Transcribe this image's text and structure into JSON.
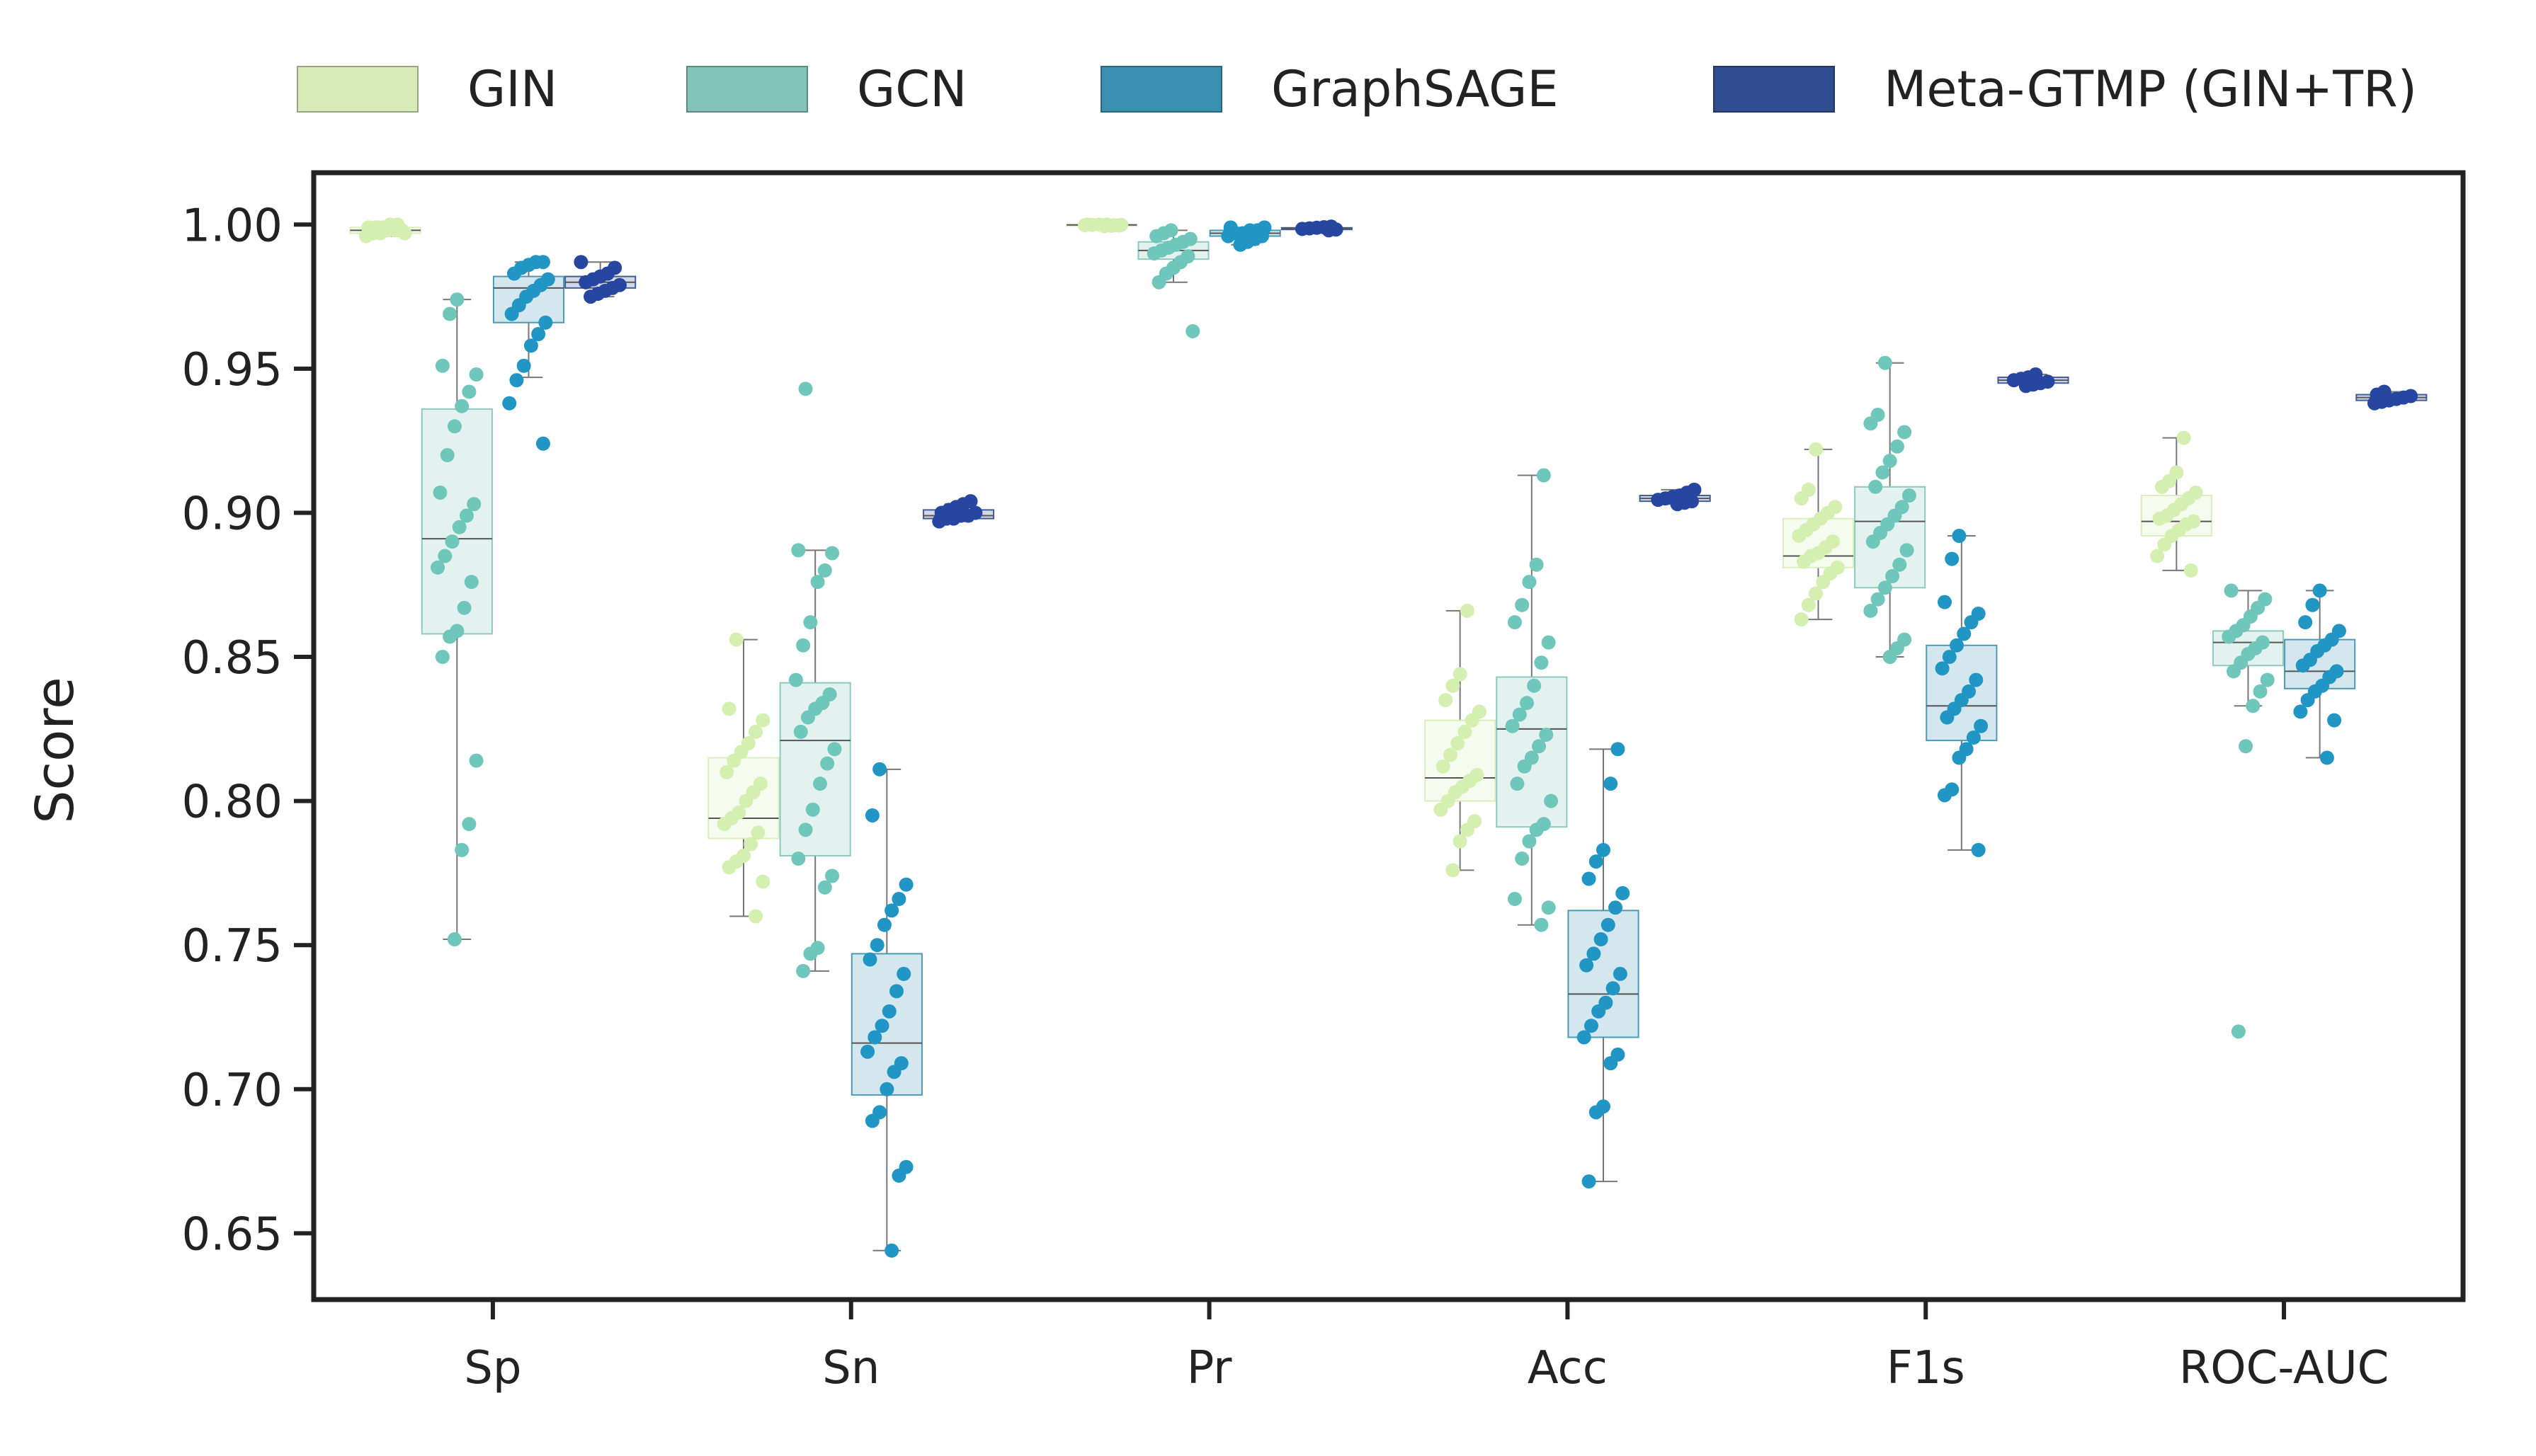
{
  "chart_data": {
    "type": "box",
    "title": "",
    "xlabel": "",
    "ylabel": "Score",
    "ylim": [
      0.627,
      1.018
    ],
    "yticks": [
      "0.65",
      "0.70",
      "0.75",
      "0.80",
      "0.85",
      "0.90",
      "0.95",
      "1.00"
    ],
    "grid": false,
    "legend_position": "top",
    "categories": [
      "Sp",
      "Sn",
      "Pr",
      "Acc",
      "F1s",
      "ROC-AUC"
    ],
    "series": [
      {
        "name": "GIN",
        "color": "#d7ecb8",
        "boxes": [
          {
            "whislo": 0.996,
            "q1": 0.997,
            "med": 0.998,
            "q3": 0.999,
            "whishi": 1.0
          },
          {
            "whislo": 0.76,
            "q1": 0.787,
            "med": 0.794,
            "q3": 0.815,
            "whishi": 0.856
          },
          {
            "whislo": 0.9995,
            "q1": 0.9997,
            "med": 0.9999,
            "q3": 1.0,
            "whishi": 1.0
          },
          {
            "whislo": 0.776,
            "q1": 0.8,
            "med": 0.808,
            "q3": 0.828,
            "whishi": 0.866
          },
          {
            "whislo": 0.863,
            "q1": 0.881,
            "med": 0.885,
            "q3": 0.898,
            "whishi": 0.922
          },
          {
            "whislo": 0.88,
            "q1": 0.892,
            "med": 0.897,
            "q3": 0.906,
            "whishi": 0.926
          }
        ],
        "points": [
          [
            0.996,
            0.997,
            0.997,
            0.998,
            0.998,
            0.998,
            0.999,
            0.999,
            0.999,
            1.0,
            1.0,
            0.997,
            0.998,
            0.999
          ],
          [
            0.76,
            0.772,
            0.777,
            0.779,
            0.781,
            0.785,
            0.789,
            0.792,
            0.794,
            0.796,
            0.8,
            0.803,
            0.806,
            0.81,
            0.814,
            0.817,
            0.82,
            0.824,
            0.828,
            0.832,
            0.856
          ],
          [
            0.9995,
            0.9996,
            0.9997,
            0.9998,
            0.9999,
            1.0,
            1.0,
            0.9998,
            0.9999,
            1.0
          ],
          [
            0.776,
            0.786,
            0.79,
            0.793,
            0.797,
            0.8,
            0.803,
            0.805,
            0.807,
            0.809,
            0.812,
            0.816,
            0.82,
            0.824,
            0.828,
            0.831,
            0.835,
            0.84,
            0.844,
            0.866
          ],
          [
            0.863,
            0.868,
            0.872,
            0.876,
            0.879,
            0.881,
            0.883,
            0.885,
            0.886,
            0.888,
            0.89,
            0.892,
            0.894,
            0.896,
            0.898,
            0.9,
            0.902,
            0.905,
            0.908,
            0.922
          ],
          [
            0.88,
            0.885,
            0.889,
            0.892,
            0.894,
            0.896,
            0.897,
            0.898,
            0.899,
            0.901,
            0.903,
            0.905,
            0.907,
            0.909,
            0.911,
            0.914,
            0.926
          ]
        ]
      },
      {
        "name": "GCN",
        "color": "#82c4b8",
        "boxes": [
          {
            "whislo": 0.752,
            "q1": 0.858,
            "med": 0.891,
            "q3": 0.936,
            "whishi": 0.974
          },
          {
            "whislo": 0.741,
            "q1": 0.781,
            "med": 0.821,
            "q3": 0.841,
            "whishi": 0.887
          },
          {
            "whislo": 0.98,
            "q1": 0.988,
            "med": 0.991,
            "q3": 0.994,
            "whishi": 0.998
          },
          {
            "whislo": 0.757,
            "q1": 0.791,
            "med": 0.825,
            "q3": 0.843,
            "whishi": 0.913
          },
          {
            "whislo": 0.85,
            "q1": 0.874,
            "med": 0.897,
            "q3": 0.909,
            "whishi": 0.952
          },
          {
            "whislo": 0.833,
            "q1": 0.847,
            "med": 0.855,
            "q3": 0.859,
            "whishi": 0.873
          }
        ],
        "points": [
          [
            0.752,
            0.783,
            0.792,
            0.814,
            0.85,
            0.857,
            0.859,
            0.867,
            0.876,
            0.881,
            0.885,
            0.89,
            0.895,
            0.899,
            0.903,
            0.907,
            0.92,
            0.93,
            0.937,
            0.942,
            0.948,
            0.951,
            0.969,
            0.974
          ],
          [
            0.741,
            0.747,
            0.749,
            0.77,
            0.774,
            0.78,
            0.79,
            0.797,
            0.806,
            0.813,
            0.818,
            0.824,
            0.829,
            0.832,
            0.834,
            0.837,
            0.842,
            0.854,
            0.862,
            0.876,
            0.88,
            0.886,
            0.887,
            0.943
          ],
          [
            0.963,
            0.98,
            0.983,
            0.985,
            0.987,
            0.989,
            0.99,
            0.991,
            0.992,
            0.993,
            0.994,
            0.995,
            0.996,
            0.997,
            0.998
          ],
          [
            0.757,
            0.763,
            0.766,
            0.78,
            0.786,
            0.79,
            0.792,
            0.8,
            0.806,
            0.812,
            0.815,
            0.819,
            0.823,
            0.826,
            0.83,
            0.834,
            0.84,
            0.848,
            0.855,
            0.862,
            0.868,
            0.876,
            0.882,
            0.913
          ],
          [
            0.85,
            0.853,
            0.856,
            0.866,
            0.87,
            0.874,
            0.878,
            0.882,
            0.887,
            0.89,
            0.893,
            0.896,
            0.899,
            0.902,
            0.906,
            0.909,
            0.914,
            0.918,
            0.923,
            0.928,
            0.931,
            0.934,
            0.952
          ],
          [
            0.72,
            0.819,
            0.833,
            0.838,
            0.842,
            0.845,
            0.848,
            0.851,
            0.853,
            0.855,
            0.857,
            0.859,
            0.861,
            0.864,
            0.867,
            0.87,
            0.873
          ]
        ]
      },
      {
        "name": "GraphSAGE",
        "color": "#3a90b0",
        "boxes": [
          {
            "whislo": 0.947,
            "q1": 0.966,
            "med": 0.978,
            "q3": 0.982,
            "whishi": 0.987
          },
          {
            "whislo": 0.644,
            "q1": 0.698,
            "med": 0.716,
            "q3": 0.747,
            "whishi": 0.811
          },
          {
            "whislo": 0.993,
            "q1": 0.996,
            "med": 0.997,
            "q3": 0.998,
            "whishi": 0.999
          },
          {
            "whislo": 0.668,
            "q1": 0.718,
            "med": 0.733,
            "q3": 0.762,
            "whishi": 0.818
          },
          {
            "whislo": 0.783,
            "q1": 0.821,
            "med": 0.833,
            "q3": 0.854,
            "whishi": 0.892
          },
          {
            "whislo": 0.815,
            "q1": 0.839,
            "med": 0.845,
            "q3": 0.856,
            "whishi": 0.873
          }
        ],
        "points": [
          [
            0.924,
            0.938,
            0.946,
            0.951,
            0.958,
            0.962,
            0.966,
            0.969,
            0.972,
            0.975,
            0.977,
            0.979,
            0.981,
            0.983,
            0.985,
            0.986,
            0.987,
            0.987
          ],
          [
            0.644,
            0.67,
            0.673,
            0.689,
            0.692,
            0.7,
            0.706,
            0.709,
            0.713,
            0.718,
            0.722,
            0.727,
            0.734,
            0.74,
            0.745,
            0.75,
            0.757,
            0.762,
            0.766,
            0.771,
            0.795,
            0.811
          ],
          [
            0.993,
            0.994,
            0.995,
            0.996,
            0.996,
            0.997,
            0.997,
            0.998,
            0.998,
            0.999,
            0.999
          ],
          [
            0.668,
            0.692,
            0.694,
            0.709,
            0.712,
            0.718,
            0.722,
            0.727,
            0.73,
            0.735,
            0.74,
            0.743,
            0.747,
            0.752,
            0.757,
            0.763,
            0.768,
            0.773,
            0.779,
            0.783,
            0.806,
            0.818
          ],
          [
            0.783,
            0.802,
            0.804,
            0.815,
            0.818,
            0.822,
            0.826,
            0.829,
            0.832,
            0.835,
            0.838,
            0.842,
            0.846,
            0.85,
            0.854,
            0.858,
            0.862,
            0.865,
            0.869,
            0.884,
            0.892
          ],
          [
            0.815,
            0.828,
            0.831,
            0.835,
            0.838,
            0.84,
            0.843,
            0.845,
            0.847,
            0.849,
            0.852,
            0.854,
            0.856,
            0.859,
            0.862,
            0.868,
            0.873
          ]
        ]
      },
      {
        "name": "Meta-GTMP (GIN+TR)",
        "color": "#2f4d8f",
        "boxes": [
          {
            "whislo": 0.975,
            "q1": 0.978,
            "med": 0.98,
            "q3": 0.982,
            "whishi": 0.987
          },
          {
            "whislo": 0.897,
            "q1": 0.898,
            "med": 0.899,
            "q3": 0.901,
            "whishi": 0.903
          },
          {
            "whislo": 0.998,
            "q1": 0.9983,
            "med": 0.9986,
            "q3": 0.9989,
            "whishi": 0.9993
          },
          {
            "whislo": 0.903,
            "q1": 0.904,
            "med": 0.905,
            "q3": 0.906,
            "whishi": 0.908
          },
          {
            "whislo": 0.944,
            "q1": 0.945,
            "med": 0.946,
            "q3": 0.947,
            "whishi": 0.948
          },
          {
            "whislo": 0.938,
            "q1": 0.939,
            "med": 0.94,
            "q3": 0.941,
            "whishi": 0.942
          }
        ],
        "points": [
          [
            0.975,
            0.976,
            0.977,
            0.978,
            0.979,
            0.98,
            0.981,
            0.982,
            0.983,
            0.985,
            0.987
          ],
          [
            0.897,
            0.898,
            0.898,
            0.899,
            0.899,
            0.9,
            0.9,
            0.901,
            0.902,
            0.903,
            0.904
          ],
          [
            0.998,
            0.9983,
            0.9985,
            0.9987,
            0.9989,
            0.9991,
            0.9993
          ],
          [
            0.903,
            0.9035,
            0.904,
            0.9045,
            0.905,
            0.9055,
            0.906,
            0.907,
            0.908
          ],
          [
            0.944,
            0.9445,
            0.945,
            0.9455,
            0.946,
            0.9465,
            0.947,
            0.948
          ],
          [
            0.938,
            0.9385,
            0.939,
            0.9395,
            0.94,
            0.9405,
            0.941,
            0.942
          ]
        ]
      }
    ]
  }
}
